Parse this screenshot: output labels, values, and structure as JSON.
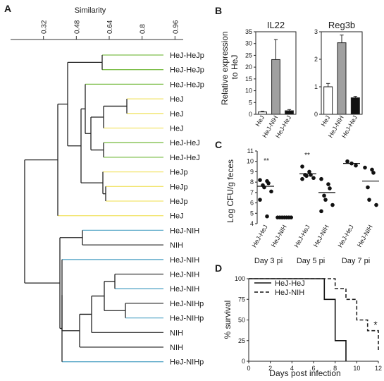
{
  "panels": {
    "A": {
      "letter": "A",
      "axis_title": "Similarity",
      "ticks": [
        "0.32",
        "0.48",
        "0.64",
        "0.8",
        "0.96"
      ],
      "leaves": [
        {
          "label": "HeJ-HeJp",
          "color": "#7fbf4c"
        },
        {
          "label": "HeJ-HeJp",
          "color": "#7fbf4c"
        },
        {
          "label": "HeJ-HeJp",
          "color": "#7fbf4c"
        },
        {
          "label": "HeJ",
          "color": "#f2e46e"
        },
        {
          "label": "HeJ",
          "color": "#f2e46e"
        },
        {
          "label": "HeJ",
          "color": "#f2e46e"
        },
        {
          "label": "HeJ-HeJ",
          "color": "#7fbf4c"
        },
        {
          "label": "HeJ-HeJ",
          "color": "#7fbf4c"
        },
        {
          "label": "HeJp",
          "color": "#f2e46e"
        },
        {
          "label": "HeJp",
          "color": "#f2e46e"
        },
        {
          "label": "HeJp",
          "color": "#f2e46e"
        },
        {
          "label": "HeJ",
          "color": "#f2e46e"
        },
        {
          "label": "HeJ-NIH",
          "color": "#5ba9c9"
        },
        {
          "label": "NIH",
          "color": "#3a3a3a"
        },
        {
          "label": "HeJ-NIH",
          "color": "#5ba9c9"
        },
        {
          "label": "HeJ-NIH",
          "color": "#3a3a3a"
        },
        {
          "label": "HeJ-NIH",
          "color": "#5ba9c9"
        },
        {
          "label": "HeJ-NIHp",
          "color": "#3a3a3a"
        },
        {
          "label": "HeJ-NIHp",
          "color": "#5ba9c9"
        },
        {
          "label": "NIH",
          "color": "#3a3a3a"
        },
        {
          "label": "NIH",
          "color": "#3a3a3a"
        },
        {
          "label": "HeJ-NIHp",
          "color": "#5ba9c9"
        }
      ]
    },
    "B": {
      "letter": "B",
      "ylabel_line1": "Relative expression",
      "ylabel_line2": "to HeJ"
    },
    "C": {
      "letter": "C",
      "ylabel": "Log CFU/g feces",
      "sig_day3": "**",
      "sig_day5": "**",
      "groups": [
        "Day 3 pi",
        "Day 5 pi",
        "Day 7 pi"
      ]
    },
    "D": {
      "letter": "D",
      "xlabel": "Days post infection",
      "ylabel": "% survival",
      "sig": "*"
    }
  },
  "chart_data": [
    {
      "type": "other",
      "subtype": "dendrogram",
      "title": "",
      "xlabel": "Similarity",
      "xlim": [
        0.16,
        1.0
      ],
      "ticks": [
        0.32,
        0.48,
        0.64,
        0.8,
        0.96
      ]
    },
    {
      "type": "bar",
      "title": "IL22",
      "categories": [
        "HeJ",
        "HeJ-NIH",
        "HeJ-HeJ"
      ],
      "values": [
        1,
        23.2,
        1.5
      ],
      "errors": [
        0.3,
        8.5,
        0.5
      ],
      "bar_colors": [
        "#ffffff",
        "#a0a0a0",
        "#111111"
      ],
      "ylim": [
        0,
        35
      ],
      "yticks": [
        0,
        5,
        10,
        15,
        20,
        25,
        30,
        35
      ]
    },
    {
      "type": "bar",
      "title": "Reg3b",
      "categories": [
        "HeJ",
        "HeJ-NIH",
        "HeJ-HeJ"
      ],
      "values": [
        1.0,
        2.6,
        0.6
      ],
      "errors": [
        0.12,
        0.28,
        0.05
      ],
      "bar_colors": [
        "#ffffff",
        "#a0a0a0",
        "#111111"
      ],
      "ylim": [
        0,
        3
      ],
      "yticks": [
        0,
        1,
        2,
        3
      ]
    },
    {
      "type": "scatter",
      "categories": [
        "HeJ-HeJ",
        "HeJ-NIH",
        "HeJ-HeJ",
        "HeJ-NIH",
        "HeJ-HeJ",
        "HeJ-NIH"
      ],
      "points": [
        [
          8.2,
          8.1,
          7.9,
          7.7,
          7.5,
          7.1,
          6.3,
          4.7
        ],
        [
          4.6,
          4.6,
          4.6,
          4.6,
          4.6,
          4.6,
          4.6
        ],
        [
          9.5,
          9.0,
          8.7,
          8.7,
          8.6,
          8.4,
          8.3
        ],
        [
          8.3,
          7.8,
          7.4,
          6.7,
          6.3,
          5.8,
          5.2
        ],
        [
          10.0,
          9.8,
          9.6
        ],
        [
          9.4,
          9.2,
          8.9,
          7.5,
          6.3,
          5.8
        ]
      ],
      "medians": [
        7.6,
        4.6,
        8.8,
        7.0,
        9.8,
        8.1
      ],
      "ylim": [
        4,
        11
      ],
      "yticks": [
        4,
        5,
        6,
        7,
        8,
        9,
        10,
        11
      ]
    },
    {
      "type": "line",
      "subtype": "step",
      "xlabel": "Days post infection",
      "ylabel": "% survival",
      "xlim": [
        0,
        12
      ],
      "ylim": [
        0,
        100
      ],
      "xticks": [
        0,
        2,
        4,
        6,
        8,
        10,
        12
      ],
      "yticks": [
        0,
        25,
        50,
        75,
        100
      ],
      "series": [
        {
          "name": "HeJ-HeJ",
          "style": "solid",
          "x": [
            0,
            7,
            7,
            8,
            8,
            9,
            9
          ],
          "y": [
            100,
            100,
            75,
            75,
            25,
            25,
            0
          ]
        },
        {
          "name": "HeJ-NIH",
          "style": "dashed",
          "x": [
            0,
            8,
            8,
            9,
            9,
            10,
            10,
            11,
            11,
            12,
            12
          ],
          "y": [
            100,
            100,
            88,
            88,
            75,
            75,
            50,
            50,
            37,
            37,
            12
          ]
        }
      ]
    }
  ]
}
